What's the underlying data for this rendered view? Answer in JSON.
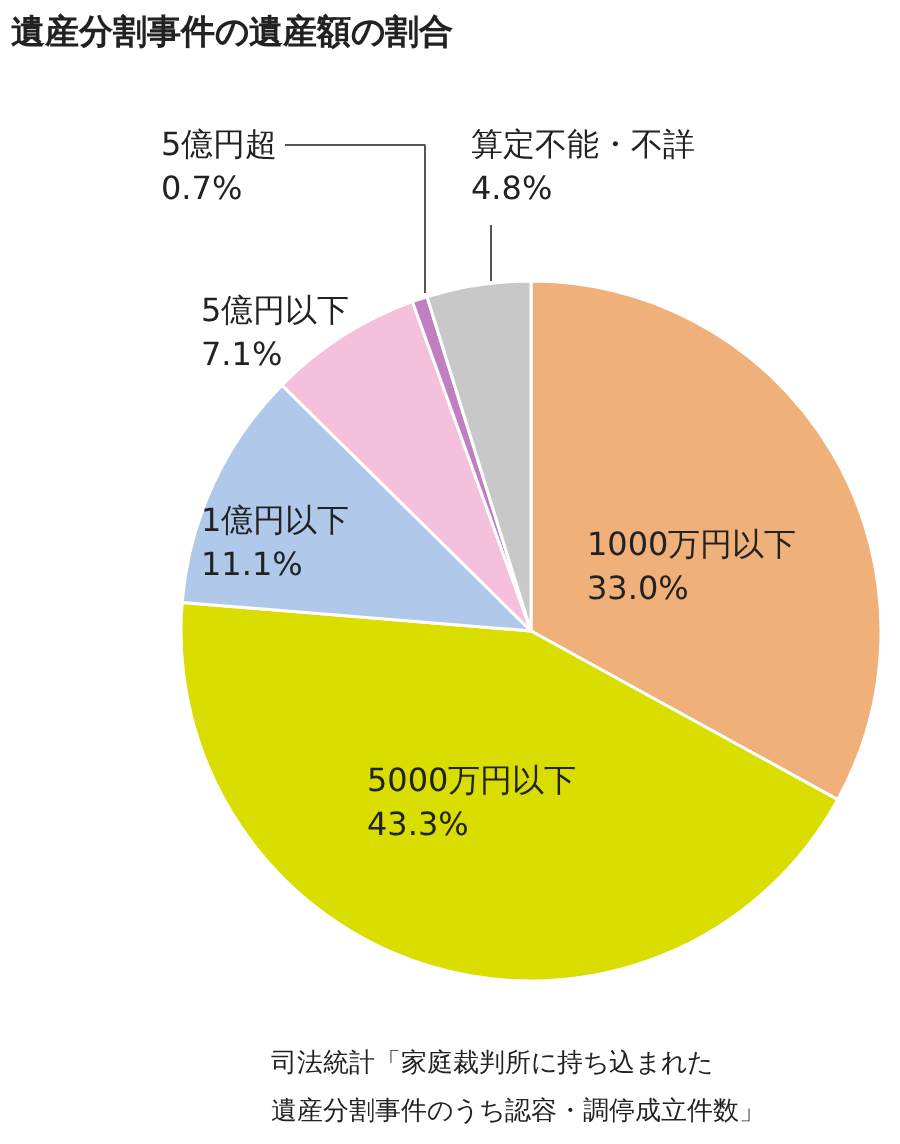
{
  "chart_data": {
    "type": "pie",
    "title": "遺産分割事件の遺産額の割合",
    "categories": [
      "1000万円以下",
      "5000万円以下",
      "1億円以下",
      "5億円以下",
      "5億円超",
      "算定不能・不詳"
    ],
    "values": [
      33.0,
      43.3,
      11.1,
      7.1,
      0.7,
      4.8
    ],
    "value_labels": [
      "33.0%",
      "43.3%",
      "11.1%",
      "7.1%",
      "0.7%",
      "4.8%"
    ],
    "colors": [
      "#f0b07a",
      "#d9de00",
      "#b0c8ea",
      "#f4c0dc",
      "#c080c0",
      "#c8c8c8"
    ],
    "annotations": [
      "司法統計「家庭裁判所に持ち込まれた",
      "遺産分割事件のうち認容・調停成立件数」"
    ]
  }
}
